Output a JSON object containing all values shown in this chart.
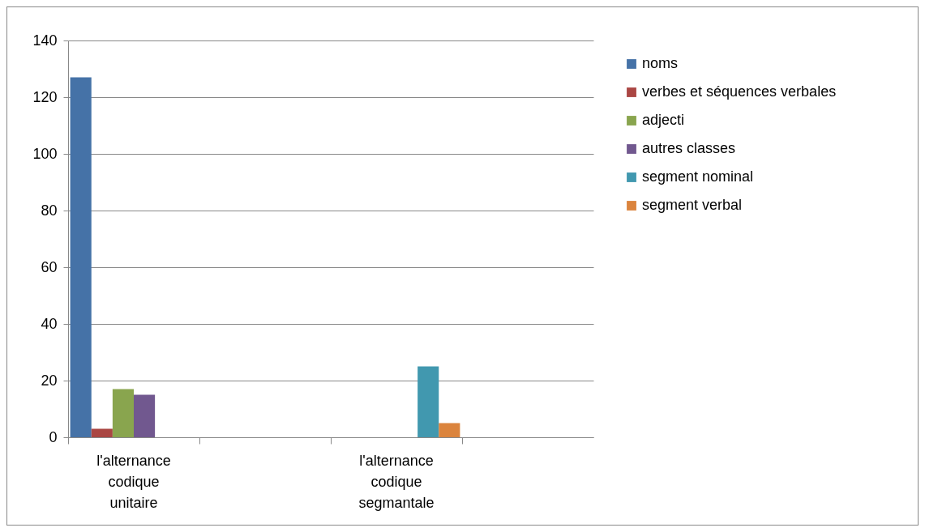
{
  "chart_data": {
    "type": "bar",
    "categories": [
      "l'alternance codique unitaire",
      null,
      "l'alternance codique segmantale",
      null
    ],
    "series": [
      {
        "name": "noms",
        "color": "#4572a7",
        "values": [
          127,
          null,
          null,
          null
        ]
      },
      {
        "name": " verbes et séquences verbales",
        "color": "#aa4643",
        "values": [
          3,
          null,
          null,
          null
        ]
      },
      {
        "name": "adjecti",
        "color": "#89a54e",
        "values": [
          17,
          null,
          null,
          null
        ]
      },
      {
        "name": "autres classes",
        "color": "#71588f",
        "values": [
          15,
          null,
          null,
          null
        ]
      },
      {
        "name": "segment nominal",
        "color": "#4198af",
        "values": [
          null,
          null,
          25,
          null
        ]
      },
      {
        "name": "segment verbal",
        "color": "#db843d",
        "values": [
          null,
          null,
          5,
          null
        ]
      }
    ],
    "ylim": [
      0,
      140
    ],
    "yticks": [
      0,
      20,
      40,
      60,
      80,
      100,
      120,
      140
    ],
    "grid": "y",
    "legend": "right"
  }
}
